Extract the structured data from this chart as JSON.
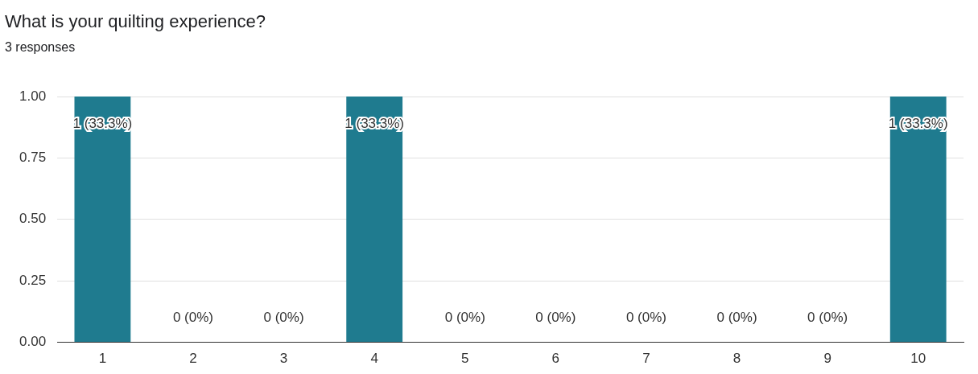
{
  "chart_data": {
    "type": "bar",
    "title": "What is your quilting experience?",
    "subtitle": "3 responses",
    "categories": [
      "1",
      "2",
      "3",
      "4",
      "5",
      "6",
      "7",
      "8",
      "9",
      "10"
    ],
    "values": [
      1,
      0,
      0,
      1,
      0,
      0,
      0,
      0,
      0,
      1
    ],
    "value_labels": [
      "1 (33.3%)",
      "0 (0%)",
      "0 (0%)",
      "1 (33.3%)",
      "0 (0%)",
      "0 (0%)",
      "0 (0%)",
      "0 (0%)",
      "0 (0%)",
      "1 (33.3%)"
    ],
    "color": "#1f7b8f",
    "ylim": [
      0,
      1
    ],
    "yticks": [
      {
        "value": 0,
        "label": "0.00"
      },
      {
        "value": 0.25,
        "label": "0.25"
      },
      {
        "value": 0.5,
        "label": "0.50"
      },
      {
        "value": 0.75,
        "label": "0.75"
      },
      {
        "value": 1,
        "label": "1.00"
      }
    ],
    "grid": "y",
    "legend": false
  }
}
